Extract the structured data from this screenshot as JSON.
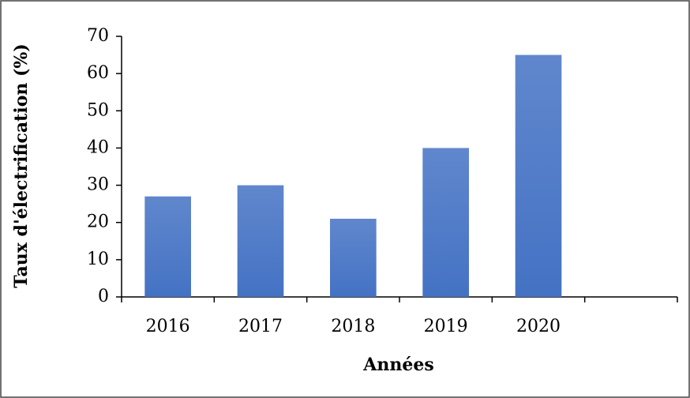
{
  "chart_data": {
    "type": "bar",
    "x_label": "Années",
    "y_label": "Taux d'électrification (%)",
    "categories": [
      "2016",
      "2017",
      "2018",
      "2019",
      "2020",
      null
    ],
    "values": [
      27,
      30,
      21,
      40,
      65,
      null
    ],
    "color": "#4472c4",
    "ylim": [
      0,
      70
    ],
    "yticks": [
      0,
      10,
      20,
      30,
      40,
      50,
      60,
      70
    ],
    "grid": false
  }
}
